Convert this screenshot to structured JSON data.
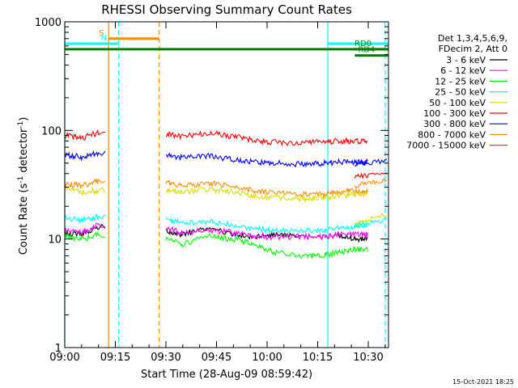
{
  "chart_data": {
    "type": "line",
    "title": "RHESSI Observing Summary Count Rates",
    "xlabel": "Start Time (28-Aug-09 08:59:42)",
    "ylabel_prefix": "Count Rate (s",
    "ylabel_sup1": "-1",
    "ylabel_mid": " detector",
    "ylabel_sup2": "-1",
    "ylabel_suffix": ")",
    "y_scale": "log",
    "ylim": [
      1,
      1000
    ],
    "xlim": [
      "09:00",
      "10:36"
    ],
    "x_ticks": [
      "09:00",
      "09:15",
      "09:30",
      "09:45",
      "10:00",
      "10:15",
      "10:30"
    ],
    "y_ticks": [
      "1",
      "10",
      "100",
      "1000"
    ],
    "timestamp": "15-Oct-2021 18:25",
    "legend_header": [
      "Det 1,3,4,5,6,9,",
      "FDecim 2, Att 0"
    ],
    "legend_position": "right",
    "series": [
      {
        "name": "3 - 6 keV",
        "color": "#000000",
        "values": [
          11.5,
          11,
          13,
          12,
          11,
          12.5,
          11,
          10.5,
          11,
          10.5,
          10.5,
          11,
          10
        ]
      },
      {
        "name": "6 - 12 keV",
        "color": "#ff00ff",
        "values": [
          12,
          11.5,
          13.5,
          12.5,
          11.5,
          12,
          11.5,
          10.5,
          10.5,
          10.5,
          10.5,
          11,
          11
        ]
      },
      {
        "name": "12 - 25 keV",
        "color": "#00ff00",
        "values": [
          10.5,
          10,
          11,
          10,
          9,
          10.5,
          10,
          9,
          7.5,
          7,
          7,
          7.5,
          8
        ]
      },
      {
        "name": "25 - 50 keV",
        "color": "#00ffff",
        "values": [
          15.5,
          15,
          16,
          15,
          14,
          14.5,
          13.5,
          12.5,
          12,
          12,
          12,
          12.5,
          13
        ]
      },
      {
        "name": "50 - 100 keV",
        "color": "#dcdc00",
        "values": [
          29,
          27,
          28,
          28,
          27,
          29,
          27,
          25,
          24,
          23.5,
          24,
          25,
          26
        ]
      },
      {
        "name": "100 - 300 keV",
        "color": "#ff0000",
        "values": [
          90,
          85,
          95,
          92,
          88,
          95,
          88,
          82,
          78,
          77,
          78,
          80,
          80
        ]
      },
      {
        "name": "300 - 800 keV",
        "color": "#0000ff",
        "values": [
          60,
          57,
          62,
          60,
          56,
          58,
          54,
          51,
          50,
          49,
          50,
          51,
          51
        ]
      },
      {
        "name": "800 - 7000 keV",
        "color": "#ff8c00",
        "values": [
          32,
          31,
          34,
          33,
          31,
          33,
          30,
          28,
          27,
          26,
          26,
          27,
          28
        ]
      },
      {
        "name": "7000 - 15000 keV",
        "color": "#a06400",
        "values": []
      }
    ],
    "segments_times": [
      "09:00",
      "09:05",
      "09:10",
      "09:30",
      "09:35",
      "09:43",
      "09:50",
      "09:56",
      "10:02",
      "10:10",
      "10:16",
      "10:21",
      "10:26"
    ],
    "gap": [
      "09:13",
      "09:30"
    ],
    "after_jump_times": [
      "10:26",
      "10:30",
      "10:36"
    ],
    "after_jump": {
      "100 - 300 keV": [
        37,
        39,
        42
      ],
      "300 - 800 keV": [
        48,
        50,
        52
      ],
      "800 - 7000 keV": [
        31,
        33,
        35
      ],
      "50 - 100 keV": [
        14,
        15,
        17
      ],
      "25 - 50 keV": [
        13,
        14,
        15
      ]
    },
    "flags": [
      {
        "label": "S",
        "color": "#ff8c00",
        "start": "09:13",
        "end": "09:28",
        "level": 700
      },
      {
        "label": "N",
        "color": "#00ffff",
        "start": "09:00",
        "end": "09:16",
        "level": 630
      },
      {
        "label": "",
        "color": "#00ffff",
        "start": "10:18",
        "end": "10:36",
        "level": 630
      },
      {
        "label": "",
        "color": "#008000",
        "start": "09:00",
        "end": "10:36",
        "level": 560
      },
      {
        "label": "RD0",
        "color": "#008000",
        "start": "10:25",
        "end": "10:36",
        "level": 560
      },
      {
        "label": "RD4",
        "color": "#008000",
        "start": "10:26",
        "end": "10:36",
        "level": 490
      }
    ],
    "vlines": [
      {
        "time": "09:00",
        "color": "#00ffff",
        "style": "solid"
      },
      {
        "time": "09:13",
        "color": "#ff8c00",
        "style": "solid"
      },
      {
        "time": "09:16",
        "color": "#00ffff",
        "style": "dashed"
      },
      {
        "time": "09:28",
        "color": "#ff8c00",
        "style": "dashed"
      },
      {
        "time": "10:18",
        "color": "#00ffff",
        "style": "solid"
      },
      {
        "time": "10:35",
        "color": "#00ffff",
        "style": "dashed"
      }
    ]
  }
}
